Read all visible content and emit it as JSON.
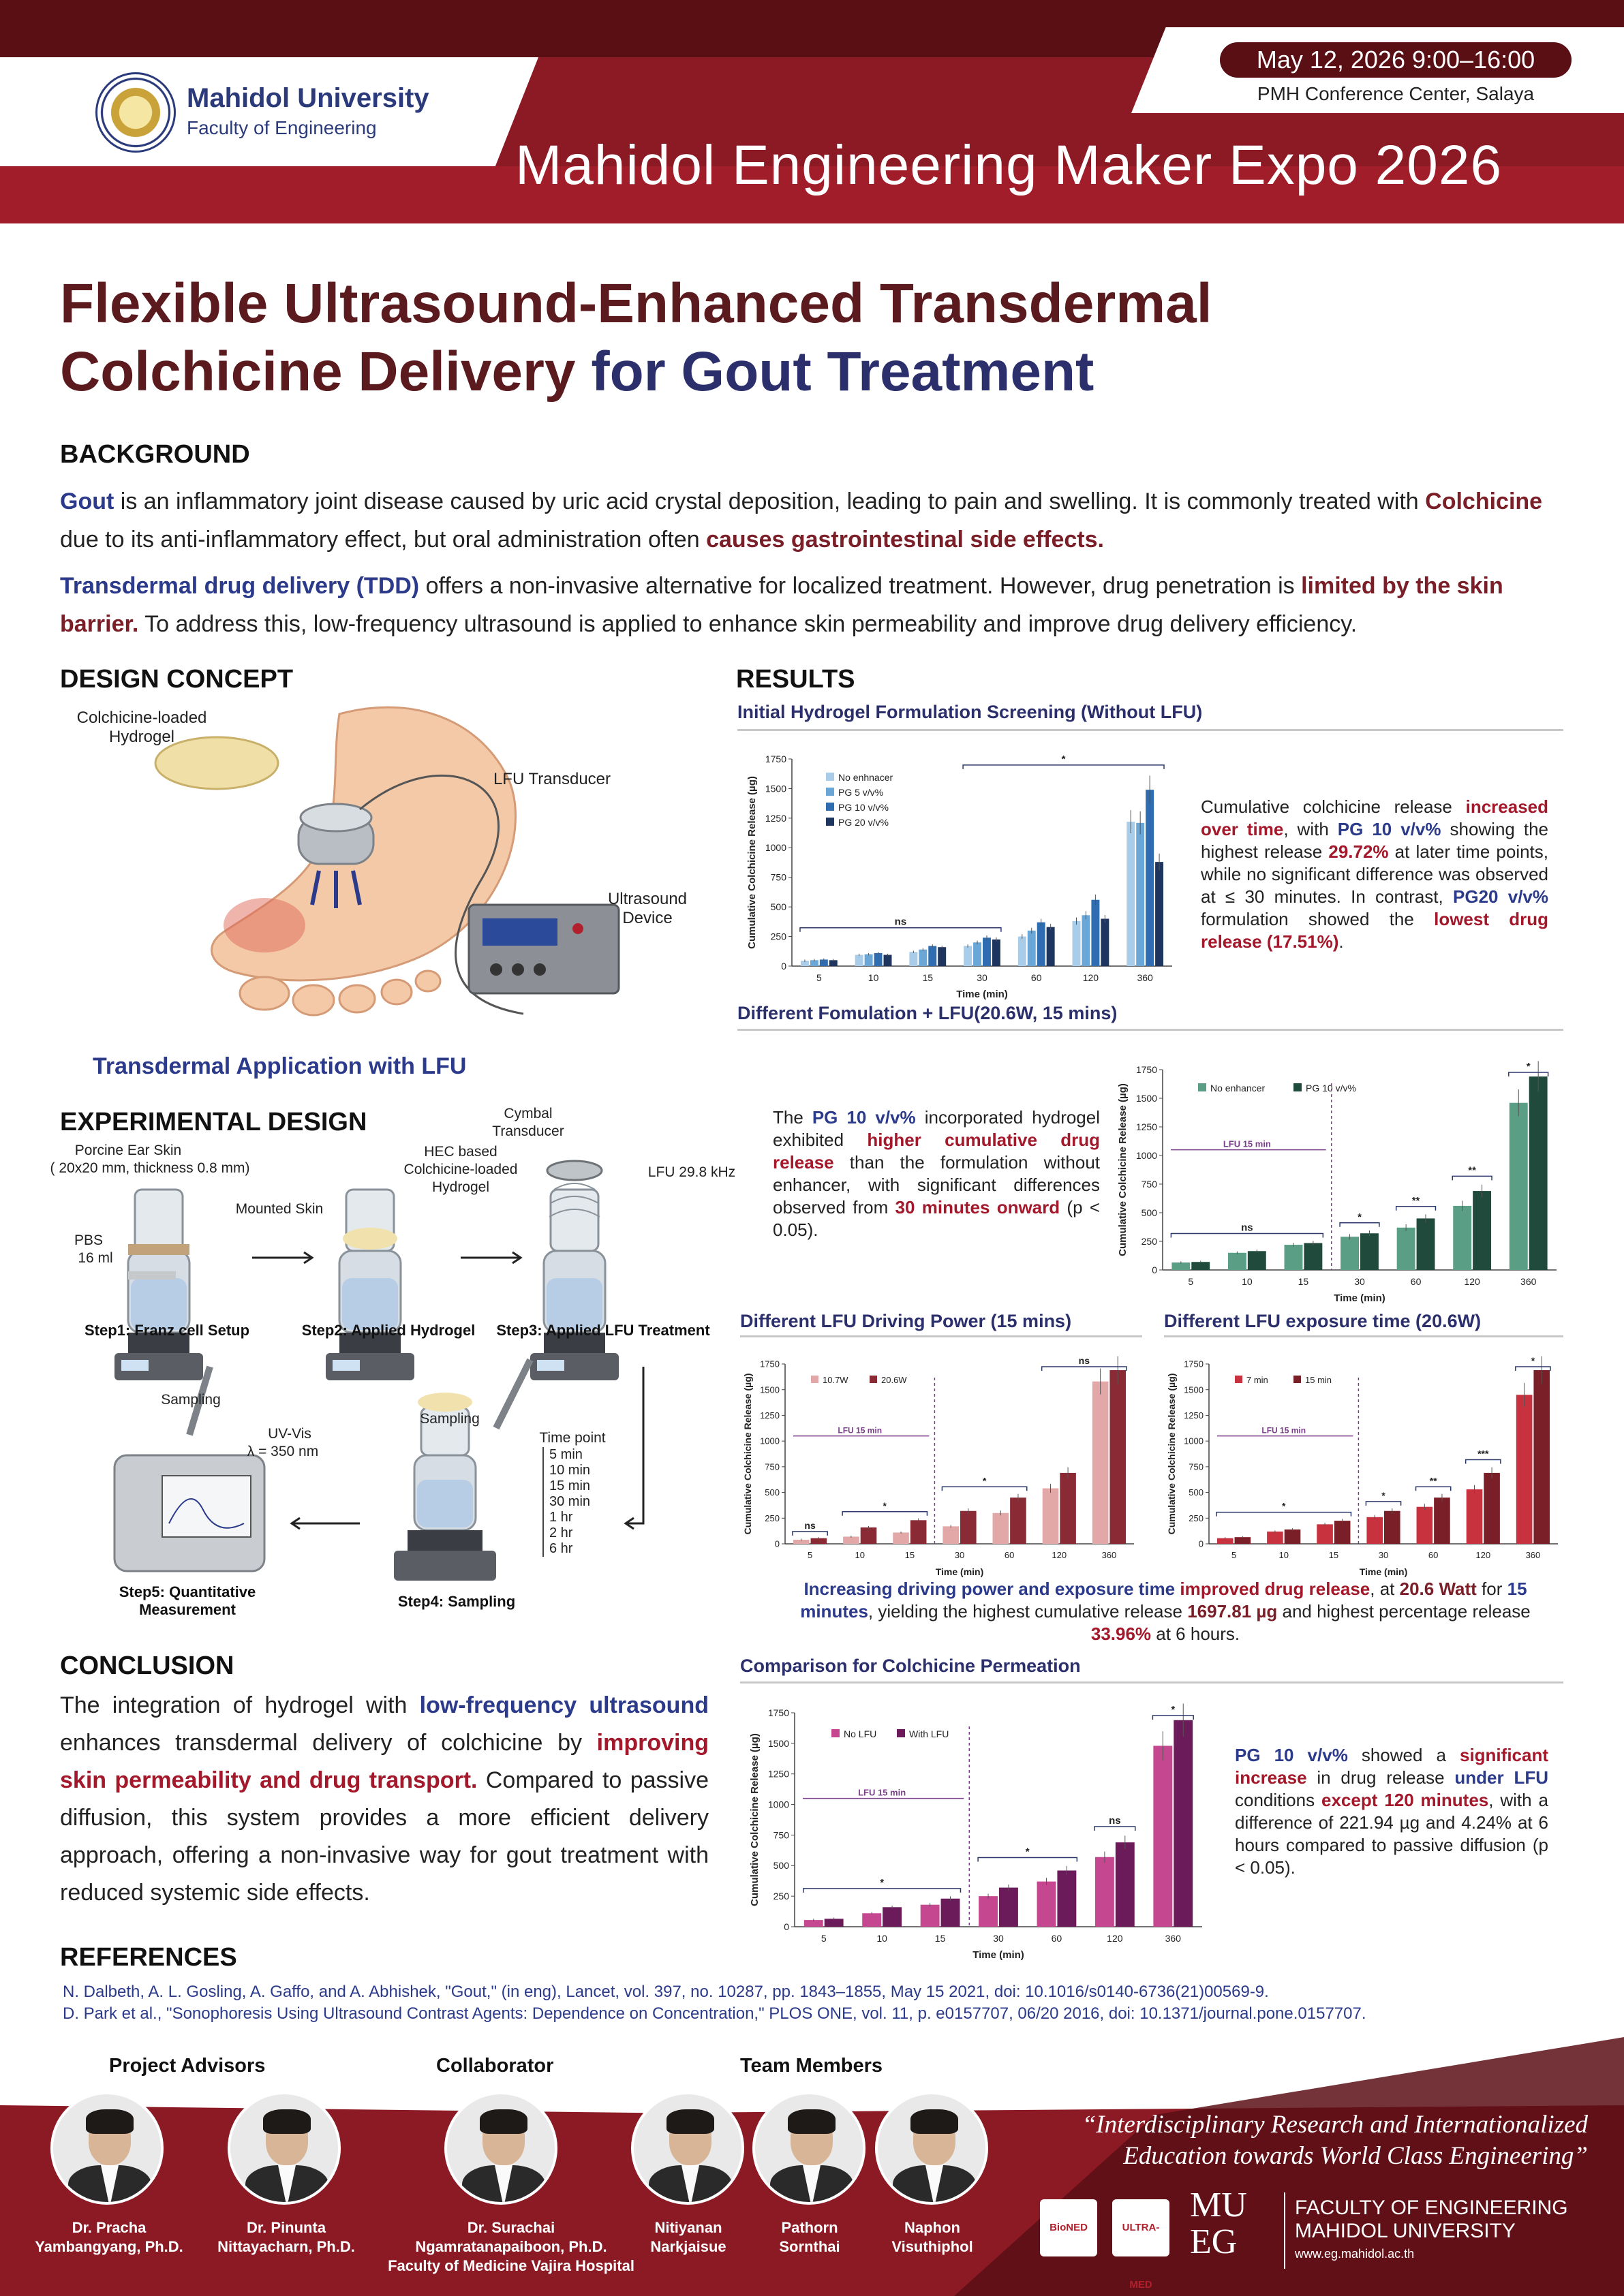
{
  "header": {
    "university": "Mahidol University",
    "faculty": "Faculty of Engineering",
    "date": "May 12, 2026 9:00–16:00",
    "venue": "PMH Conference Center, Salaya",
    "expo_title": "Mahidol Engineering Maker Expo 2026"
  },
  "title": {
    "line1_a": "Flexible Ultrasound-Enhanced Transdermal",
    "line2_a": "Colchicine Delivery ",
    "line2_b": "for Gout Treatment"
  },
  "background": {
    "heading": "BACKGROUND",
    "p1": [
      "Gout",
      " is an inflammatory joint disease caused by uric acid crystal deposition, leading to pain and swelling. It is commonly treated with ",
      "Colchicine",
      " due to its anti-inflammatory effect, but oral administration often ",
      "causes gastrointestinal side effects."
    ],
    "p2": [
      "Transdermal drug delivery (TDD)",
      " offers a non-invasive alternative for localized treatment. However, drug penetration is ",
      "limited by the skin barrier.",
      " To address this, low-frequency ultrasound is applied to enhance skin permeability and improve drug delivery efficiency."
    ]
  },
  "design_concept": {
    "heading": "DESIGN CONCEPT",
    "hydrogel_label": "Colchicine-loaded Hydrogel",
    "transducer_label": "LFU Transducer",
    "device_label": "Ultrasound Device",
    "caption": "Transdermal Application with LFU"
  },
  "experimental": {
    "heading": "EXPERIMENTAL DESIGN",
    "cymbal": "Cymbal Transducer",
    "porcine": "Porcine Ear Skin",
    "porcine_dims": "( 20x20 mm, thickness 0.8 mm)",
    "mounted": "Mounted Skin",
    "pbs": "PBS",
    "pbs_vol": "16 ml",
    "hec": "HEC based Colchicine-loaded Hydrogel",
    "lfu_freq": "LFU 29.8 kHz",
    "step1": "Step1: Franz cell Setup",
    "step2": "Step2: Applied Hydrogel",
    "step3": "Step3: Applied LFU Treatment",
    "sampling1": "Sampling",
    "uvvis": "UV-Vis",
    "lambda": "λ = 350 nm",
    "sampling2": "Sampling",
    "timepoint": "Time point",
    "times": [
      "5 min",
      "10 min",
      "15 min",
      "30 min",
      "1 hr",
      "2 hr",
      "6 hr"
    ],
    "step5": "Step5: Quantitative Measurement",
    "step4": "Step4: Sampling"
  },
  "conclusion": {
    "heading": "CONCLUSION",
    "parts": [
      "The integration of hydrogel with ",
      "low-frequency ultrasound",
      " enhances transdermal delivery of colchicine by ",
      "improving skin permeability and drug transport.",
      " Compared to passive diffusion, this system provides a more efficient delivery approach, offering a non-invasive way for gout treatment with reduced systemic side effects."
    ]
  },
  "references": {
    "heading": "REFERENCES",
    "items": [
      "N. Dalbeth, A. L. Gosling, A. Gaffo, and A. Abhishek, \"Gout,\" (in eng), Lancet, vol. 397, no. 10287, pp. 1843–1855, May 15 2021, doi: 10.1016/s0140-6736(21)00569-9.",
      "D. Park et al., \"Sonophoresis Using Ultrasound Contrast Agents: Dependence on Concentration,\" PLOS ONE, vol. 11, p. e0157707, 06/20 2016, doi: 10.1371/journal.pone.0157707."
    ]
  },
  "results": {
    "heading": "RESULTS",
    "sub1": "Initial Hydrogel Formulation Screening (Without LFU)",
    "text1": [
      "Cumulative colchicine release ",
      "increased over time",
      ", with ",
      "PG 10 v/v%",
      " showing the highest release ",
      "29.72%",
      " at later time points, while no significant difference was observed at ≤ 30 minutes. In contrast, ",
      "PG20 v/v%",
      " formulation showed the ",
      "lowest drug release (17.51%)",
      "."
    ],
    "sub2": "Different Fomulation + LFU(20.6W, 15 mins)",
    "text2": [
      "The ",
      "PG 10 v/v%",
      " incorporated hydrogel exhibited ",
      "higher cumulative drug release",
      " than the formulation without enhancer, with significant differences observed from ",
      "30 minutes onward",
      " (p < 0.05)."
    ],
    "sub3": "Different LFU Driving Power (15 mins)",
    "sub4": "Different LFU exposure time (20.6W)",
    "text34": [
      "Increasing driving power and exposure time ",
      "improved drug release",
      ", at ",
      "20.6 Watt",
      " for ",
      "15 minutes",
      ", yielding the highest cumulative release ",
      "1697.81 µg",
      " and highest percentage release ",
      "33.96%",
      " at 6 hours."
    ],
    "sub5": "Comparison for Colchicine Permeation",
    "text5": [
      "PG 10 v/v%",
      " showed a ",
      "significant increase",
      " in drug release ",
      "under LFU",
      " conditions ",
      "except 120 minutes",
      ", with a difference of 221.94 µg and 4.24% at 6 hours compared to passive diffusion (p < 0.05)."
    ]
  },
  "chart_data": [
    {
      "type": "bar",
      "title": "Initial Hydrogel Formulation Screening (Without LFU)",
      "xlabel": "Time (min)",
      "ylabel": "Cumulative Colchicine Release (µg)",
      "ylim": [
        0,
        1750
      ],
      "yticks": [
        0,
        250,
        500,
        750,
        1000,
        1250,
        1500,
        1750
      ],
      "categories": [
        "5",
        "10",
        "15",
        "30",
        "60",
        "120",
        "360"
      ],
      "legend_position": "top-left",
      "series": [
        {
          "name": "No enhnacer",
          "color": "#a9cce8",
          "values": [
            45,
            95,
            120,
            170,
            250,
            380,
            1220
          ]
        },
        {
          "name": "PG 5 v/v%",
          "color": "#6aa6d6",
          "values": [
            50,
            100,
            140,
            200,
            300,
            430,
            1210
          ]
        },
        {
          "name": "PG 10  v/v%",
          "color": "#2f6cb0",
          "values": [
            55,
            110,
            170,
            240,
            370,
            560,
            1490
          ]
        },
        {
          "name": "PG 20 v/v%",
          "color": "#1e3560",
          "values": [
            50,
            95,
            160,
            225,
            330,
            400,
            880
          ]
        }
      ],
      "annotations": [
        {
          "text": "ns",
          "from": "5",
          "to": "30"
        },
        {
          "text": "*",
          "from": "30",
          "to": "360"
        }
      ]
    },
    {
      "type": "bar",
      "title": "Different Fomulation + LFU(20.6W, 15 mins)",
      "xlabel": "Time (min)",
      "ylabel": "Cumulative Colchicine Release (µg)",
      "ylim": [
        0,
        1750
      ],
      "yticks": [
        0,
        250,
        500,
        750,
        1000,
        1250,
        1500,
        1750
      ],
      "categories": [
        "5",
        "10",
        "15",
        "30",
        "60",
        "120",
        "360"
      ],
      "legend_position": "top",
      "lfu_region": "LFU 15 min",
      "series": [
        {
          "name": "No enhancer",
          "color": "#5a9e86",
          "values": [
            65,
            150,
            220,
            290,
            370,
            560,
            1460
          ]
        },
        {
          "name": "PG 10  v/v%",
          "color": "#1f4a3c",
          "values": [
            70,
            165,
            235,
            320,
            450,
            690,
            1690
          ]
        }
      ],
      "annotations": [
        {
          "text": "ns",
          "from": "5",
          "to": "15"
        },
        {
          "text": "*",
          "at": "30"
        },
        {
          "text": "**",
          "at": "60"
        },
        {
          "text": "**",
          "at": "120"
        },
        {
          "text": "*",
          "at": "360"
        }
      ]
    },
    {
      "type": "bar",
      "title": "Different LFU Driving Power (15 mins)",
      "xlabel": "Time (min)",
      "ylabel": "Cumulative Colchicine Release (µg)",
      "ylim": [
        0,
        1750
      ],
      "yticks": [
        0,
        250,
        500,
        750,
        1000,
        1250,
        1500,
        1750
      ],
      "categories": [
        "5",
        "10",
        "15",
        "30",
        "60",
        "120",
        "360"
      ],
      "legend_position": "top-left",
      "lfu_region": "LFU 15 min",
      "series": [
        {
          "name": "10.7W",
          "color": "#e2a8a8",
          "values": [
            40,
            70,
            110,
            170,
            300,
            540,
            1580
          ]
        },
        {
          "name": "20.6W",
          "color": "#8a2a34",
          "values": [
            55,
            160,
            230,
            320,
            450,
            690,
            1690
          ]
        }
      ],
      "annotations": [
        {
          "text": "ns",
          "at": "5"
        },
        {
          "text": "*",
          "from": "10",
          "to": "15"
        },
        {
          "text": "*",
          "from": "30",
          "to": "60"
        },
        {
          "text": "ns",
          "from": "120",
          "to": "360"
        }
      ]
    },
    {
      "type": "bar",
      "title": "Different LFU exposure time (20.6W)",
      "xlabel": "Time (min)",
      "ylabel": "Cumulative Colchicine Release (µg)",
      "ylim": [
        0,
        1750
      ],
      "yticks": [
        0,
        250,
        500,
        750,
        1000,
        1250,
        1500,
        1750
      ],
      "categories": [
        "5",
        "10",
        "15",
        "30",
        "60",
        "120",
        "360"
      ],
      "legend_position": "top-left",
      "lfu_region": "LFU 15 min",
      "series": [
        {
          "name": "7 min",
          "color": "#c8323f",
          "values": [
            55,
            120,
            190,
            260,
            360,
            530,
            1450
          ]
        },
        {
          "name": "15 min",
          "color": "#7a1e28",
          "values": [
            65,
            140,
            225,
            320,
            450,
            690,
            1690
          ]
        }
      ],
      "annotations": [
        {
          "text": "*",
          "from": "5",
          "to": "15"
        },
        {
          "text": "*",
          "at": "30"
        },
        {
          "text": "**",
          "at": "60"
        },
        {
          "text": "***",
          "at": "120"
        },
        {
          "text": "*",
          "at": "360"
        }
      ]
    },
    {
      "type": "bar",
      "title": "Comparison for Colchicine Permeation",
      "xlabel": "Time (min)",
      "ylabel": "Cumulative Colchicine Release (µg)",
      "ylim": [
        0,
        1750
      ],
      "yticks": [
        0,
        250,
        500,
        750,
        1000,
        1250,
        1500,
        1750
      ],
      "categories": [
        "5",
        "10",
        "15",
        "30",
        "60",
        "120",
        "360"
      ],
      "legend_position": "top-left",
      "lfu_region": "LFU 15 min",
      "series": [
        {
          "name": "No LFU",
          "color": "#c4478f",
          "values": [
            55,
            110,
            180,
            250,
            370,
            570,
            1480
          ]
        },
        {
          "name": "With LFU",
          "color": "#6b1a5a",
          "values": [
            65,
            160,
            230,
            320,
            460,
            690,
            1690
          ]
        }
      ],
      "annotations": [
        {
          "text": "*",
          "from": "5",
          "to": "15"
        },
        {
          "text": "*",
          "from": "30",
          "to": "60"
        },
        {
          "text": "ns",
          "at": "120"
        },
        {
          "text": "*",
          "at": "360"
        }
      ]
    }
  ],
  "footer": {
    "advisors_heading": "Project Advisors",
    "collab_heading": "Collaborator",
    "team_heading": "Team Members",
    "people": [
      {
        "name1": "Dr. Pracha",
        "name2": "Yambangyang, Ph.D."
      },
      {
        "name1": "Dr. Pinunta",
        "name2": "Nittayacharn, Ph.D."
      },
      {
        "name1": "Dr. Surachai",
        "name2": "Ngamratanapaiboon, Ph.D.",
        "name3": "Faculty of Medicine Vajira Hospital"
      },
      {
        "name1": "Nitiyanan",
        "name2": "Narkjaisue"
      },
      {
        "name1": "Pathorn",
        "name2": "Sornthai"
      },
      {
        "name1": "Naphon",
        "name2": "Visuthiphol"
      }
    ],
    "quote_line1": "“Interdisciplinary Research and Internationalized",
    "quote_line2": "Education towards World Class Engineering”",
    "sponsor1": "BioNED",
    "sponsor2": "ULTRA-MED",
    "mueg_top": "MU",
    "mueg_bottom": "EG",
    "faculty_line1": "FACULTY OF ENGINEERING",
    "faculty_line2": "MAHIDOL UNIVERSITY",
    "website": "www.eg.mahidol.ac.th"
  }
}
